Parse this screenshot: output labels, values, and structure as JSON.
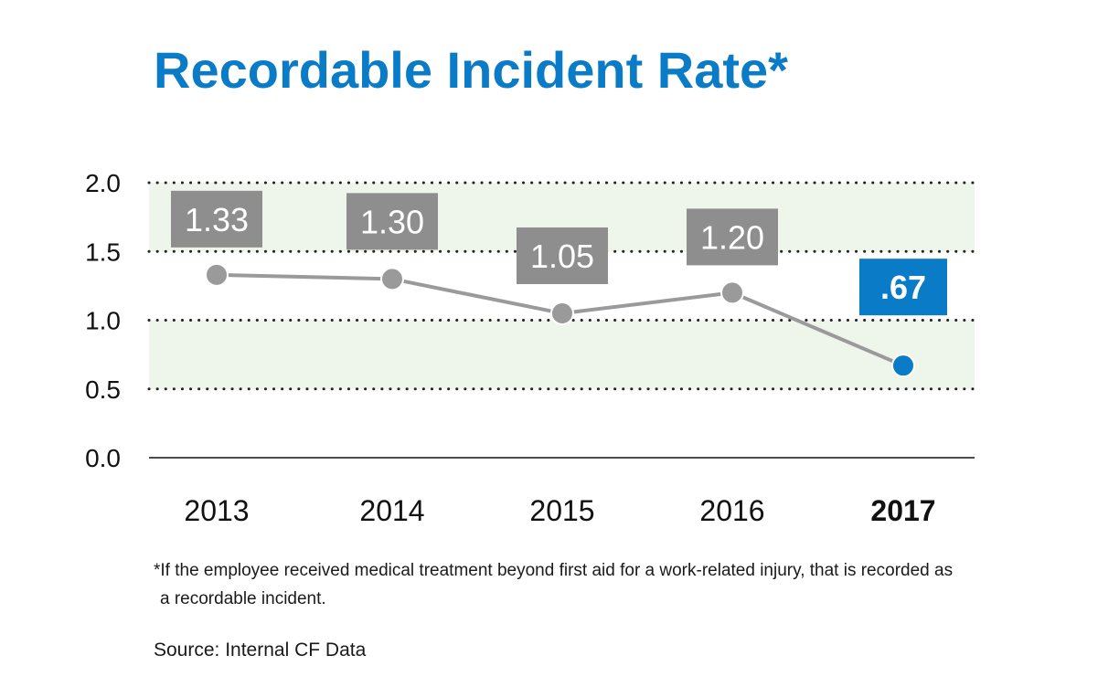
{
  "chart_data": {
    "type": "line",
    "title": "Recordable Incident Rate*",
    "categories": [
      "2013",
      "2014",
      "2015",
      "2016",
      "2017"
    ],
    "values": [
      1.33,
      1.3,
      1.05,
      1.2,
      0.67
    ],
    "value_labels": [
      "1.33",
      "1.30",
      "1.05",
      "1.20",
      ".67"
    ],
    "highlight_index": 4,
    "yticks": [
      "0.0",
      "0.5",
      "1.0",
      "1.5",
      "2.0"
    ],
    "ytick_values": [
      0,
      0.5,
      1.0,
      1.5,
      2.0
    ],
    "ylim": [
      0,
      2.0
    ],
    "bands": [
      [
        0.5,
        1.0
      ],
      [
        1.5,
        2.0
      ]
    ],
    "grid": "dotted",
    "xlabel": "",
    "ylabel": ""
  },
  "colors": {
    "title": "#0a7bc7",
    "series": "#9a9a9a",
    "label_box": "#8e8e8e",
    "highlight": "#0a7bc7",
    "band": "#eef5ea",
    "grid": "#222222"
  },
  "footnote": {
    "line1": "*If the employee received medical treatment beyond first aid for a work-related injury, that is recorded as",
    "line2": "a recordable incident."
  },
  "source": "Source: Internal CF Data"
}
